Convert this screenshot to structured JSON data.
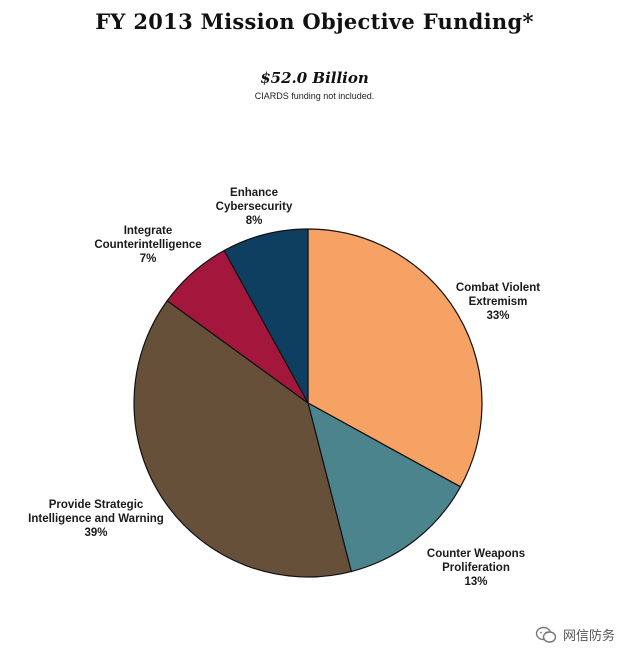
{
  "header": {
    "title": "FY 2013 Mission Objective Funding*",
    "total": "$52.0 Billion",
    "note": "CIARDS funding not included."
  },
  "chart_data": {
    "type": "pie",
    "title": "FY 2013 Mission Objective Funding*",
    "subtitle": "$52.0 Billion",
    "slices": [
      {
        "label_lines": [
          "Combat Violent",
          "Extremism"
        ],
        "percent_label": "33%",
        "value": 33,
        "color": "#f6a265"
      },
      {
        "label_lines": [
          "Counter Weapons",
          "Proliferation"
        ],
        "percent_label": "13%",
        "value": 13,
        "color": "#4c848d"
      },
      {
        "label_lines": [
          "Provide Strategic",
          "Intelligence and Warning"
        ],
        "percent_label": "39%",
        "value": 39,
        "color": "#66503a"
      },
      {
        "label_lines": [
          "Integrate",
          "Counterintelligence"
        ],
        "percent_label": "7%",
        "value": 7,
        "color": "#a3173d"
      },
      {
        "label_lines": [
          "Enhance",
          "Cybersecurity"
        ],
        "percent_label": "8%",
        "value": 8,
        "color": "#0f3f60"
      }
    ]
  },
  "watermark": {
    "text": "网信防务",
    "icon": "wechat-icon"
  }
}
